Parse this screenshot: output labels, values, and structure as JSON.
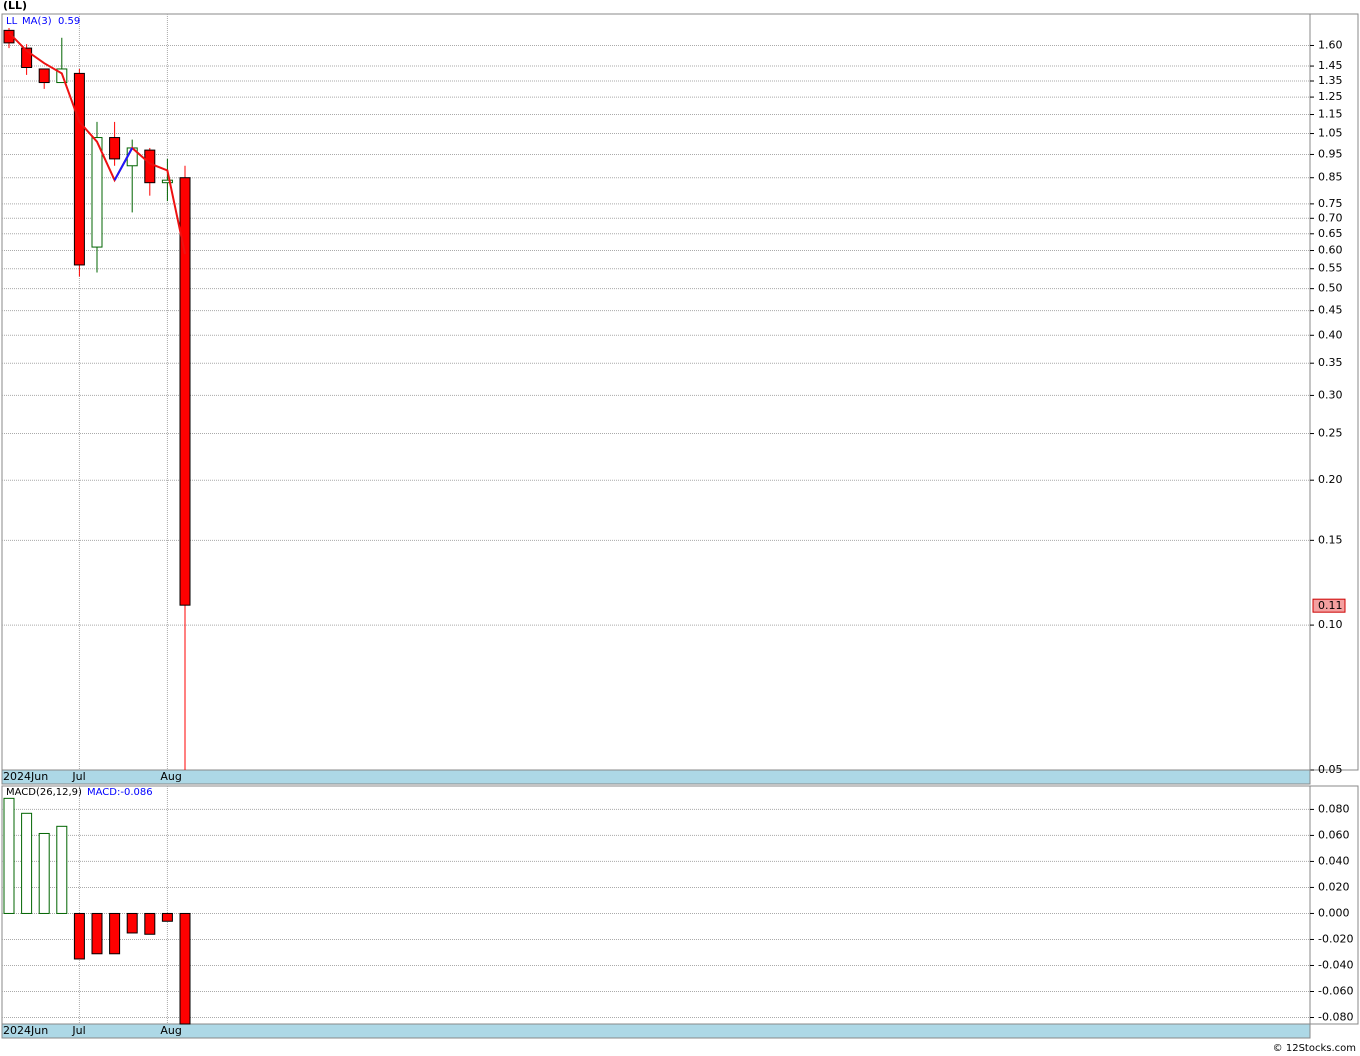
{
  "footer": "© 12Stocks.com",
  "chart_data": [
    {
      "type": "candlestick",
      "title": "(LL)",
      "symbol": "LL",
      "log_scale": true,
      "grid": true,
      "categories": [
        "2024Jun",
        null,
        null,
        null,
        "Jul",
        null,
        null,
        null,
        null,
        "Aug",
        null
      ],
      "open": [
        1.72,
        1.58,
        1.43,
        1.34,
        1.4,
        0.61,
        1.03,
        0.9,
        0.97,
        0.83,
        0.85
      ],
      "high": [
        1.74,
        1.61,
        1.43,
        1.66,
        1.43,
        1.11,
        1.11,
        1.02,
        0.98,
        0.93,
        0.9
      ],
      "low": [
        1.58,
        1.39,
        1.3,
        1.34,
        0.53,
        0.54,
        0.9,
        0.72,
        0.78,
        0.76,
        0.05
      ],
      "close": [
        1.62,
        1.44,
        1.34,
        1.43,
        0.56,
        1.03,
        0.93,
        0.98,
        0.83,
        0.84,
        0.11
      ],
      "up_color": "#006400",
      "down_color": "#ff0000",
      "series": [
        {
          "name": "MA(3)",
          "color": "#ee1111",
          "rise_color": "#1a1aff",
          "values": [
            1.7,
            1.56,
            1.47,
            1.4,
            1.11,
            1.01,
            0.84,
            0.98,
            0.91,
            0.88,
            0.59
          ]
        }
      ],
      "ylim": [
        0.05,
        1.86
      ],
      "yticks": [
        {
          "value": 1.6,
          "label": "1.60"
        },
        {
          "value": 1.45,
          "label": "1.45"
        },
        {
          "value": 1.35,
          "label": "1.35"
        },
        {
          "value": 1.25,
          "label": "1.25"
        },
        {
          "value": 1.15,
          "label": "1.15"
        },
        {
          "value": 1.05,
          "label": "1.05"
        },
        {
          "value": 0.95,
          "label": "0.95"
        },
        {
          "value": 0.85,
          "label": "0.85"
        },
        {
          "value": 0.75,
          "label": "0.75"
        },
        {
          "value": 0.7,
          "label": "0.70"
        },
        {
          "value": 0.65,
          "label": "0.65"
        },
        {
          "value": 0.6,
          "label": "0.60"
        },
        {
          "value": 0.55,
          "label": "0.55"
        },
        {
          "value": 0.5,
          "label": "0.50"
        },
        {
          "value": 0.45,
          "label": "0.45"
        },
        {
          "value": 0.4,
          "label": "0.40"
        },
        {
          "value": 0.35,
          "label": "0.35"
        },
        {
          "value": 0.3,
          "label": "0.30"
        },
        {
          "value": 0.25,
          "label": "0.25"
        },
        {
          "value": 0.2,
          "label": "0.20"
        },
        {
          "value": 0.15,
          "label": "0.15"
        },
        {
          "value": 0.1,
          "label": "0.10"
        },
        {
          "value": 0.05,
          "label": "0.05"
        }
      ]
    },
    {
      "type": "bar",
      "grid": true,
      "categories": [
        "2024Jun",
        null,
        null,
        null,
        "Jul",
        null,
        null,
        null,
        null,
        "Aug",
        null
      ],
      "series": [
        {
          "name": "MACD(26,12,9)",
          "legend": "MACD:-0.086",
          "up_color": "#006400",
          "down_color": "#ff0000",
          "values": [
            0.0885,
            0.077,
            0.0615,
            0.067,
            -0.035,
            -0.031,
            -0.031,
            -0.015,
            -0.016,
            -0.006,
            -0.086
          ]
        }
      ],
      "ylim": [
        -0.085,
        0.098
      ],
      "yticks": [
        {
          "value": 0.08,
          "label": "0.080"
        },
        {
          "value": 0.06,
          "label": "0.060"
        },
        {
          "value": 0.04,
          "label": "0.040"
        },
        {
          "value": 0.02,
          "label": "0.020"
        },
        {
          "value": 0,
          "label": "0.000"
        },
        {
          "value": -0.02,
          "label": "-0.020"
        },
        {
          "value": -0.04,
          "label": "-0.040"
        },
        {
          "value": -0.06,
          "label": "-0.060"
        },
        {
          "value": -0.08,
          "label": "-0.080"
        }
      ]
    }
  ]
}
